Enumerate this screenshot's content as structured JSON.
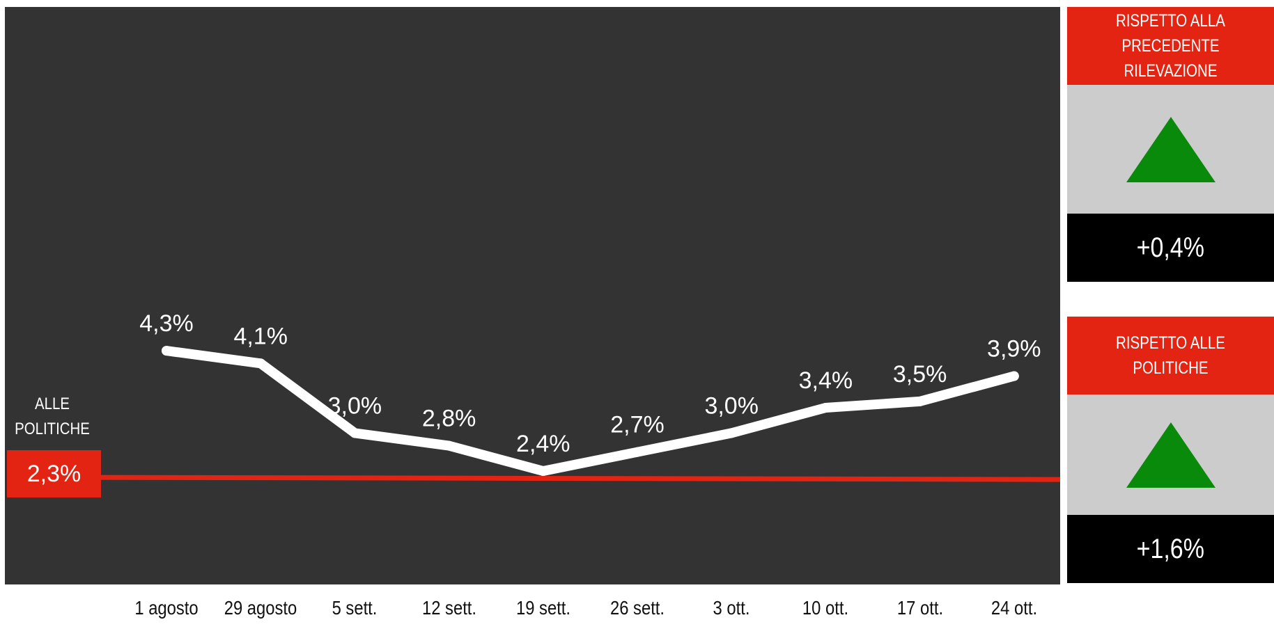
{
  "chart_data": {
    "type": "line",
    "categories": [
      "1 agosto",
      "29 agosto",
      "5 sett.",
      "12 sett.",
      "19 sett.",
      "26 sett.",
      "3 ott.",
      "10 ott.",
      "17 ott.",
      "24 ott."
    ],
    "series": [
      {
        "values": [
          4.3,
          4.1,
          3.0,
          2.8,
          2.4,
          2.7,
          3.0,
          3.4,
          3.5,
          3.9
        ],
        "labels": [
          "4,3%",
          "4,1%",
          "3,0%",
          "2,8%",
          "2,4%",
          "2,7%",
          "3,0%",
          "3,4%",
          "3,5%",
          "3,9%"
        ]
      }
    ],
    "reference": {
      "label": "ALLE POLITICHE",
      "value": 2.3,
      "value_label": "2,3%",
      "color": "#e32412"
    },
    "ylim": [
      0,
      10
    ],
    "grid": false
  },
  "panels": [
    {
      "heading": "RISPETTO ALLA\nPRECEDENTE RILEVAZIONE",
      "indicator": "up-triangle-icon",
      "value": "+0,4%"
    },
    {
      "heading": "RISPETTO ALLE POLITICHE",
      "indicator": "up-triangle-icon",
      "value": "+1,6%"
    }
  ],
  "colors": {
    "background": "#333333",
    "line": "#ffffff",
    "reference": "#e32412",
    "panel_head": "#e32412",
    "panel_mid": "#cccccc",
    "panel_foot": "#000000",
    "up": "#0a8a0a"
  }
}
